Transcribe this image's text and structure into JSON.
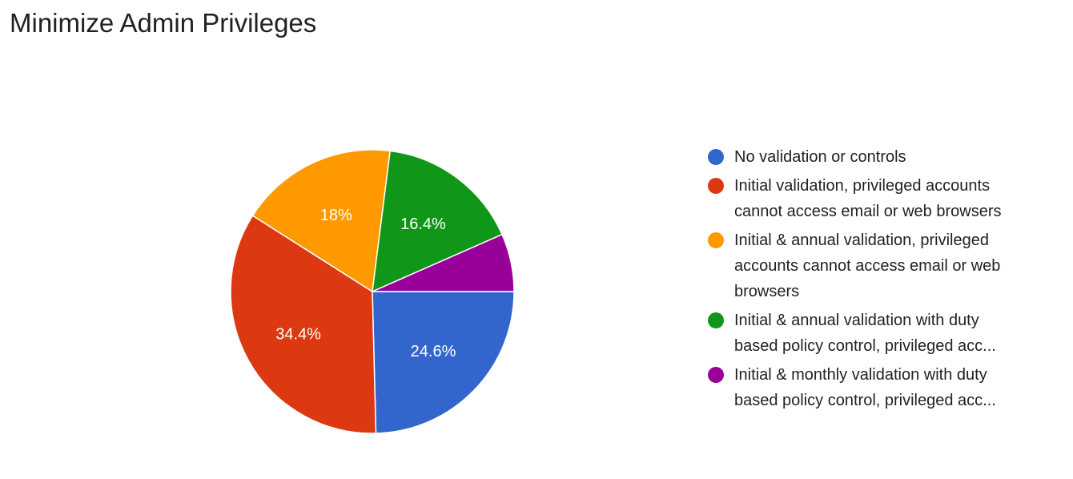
{
  "chart_data": {
    "type": "pie",
    "title": "Minimize Admin Privileges",
    "slices": [
      {
        "label_lines": [
          "No validation or controls"
        ],
        "value": 24.6,
        "value_label": "24.6%",
        "color": "#3366cc"
      },
      {
        "label_lines": [
          "Initial validation, privileged accounts",
          "cannot access email or web browsers"
        ],
        "value": 34.4,
        "value_label": "34.4%",
        "color": "#dc3912"
      },
      {
        "label_lines": [
          "Initial & annual validation, privileged",
          "accounts cannot access email or web",
          "browsers"
        ],
        "value": 18.0,
        "value_label": "18%",
        "color": "#ff9900"
      },
      {
        "label_lines": [
          "Initial & annual validation with duty",
          "based policy control, privileged acc..."
        ],
        "value": 16.4,
        "value_label": "16.4%",
        "color": "#109618"
      },
      {
        "label_lines": [
          "Initial & monthly validation with duty",
          "based policy control, privileged acc..."
        ],
        "value": 6.6,
        "value_label": "",
        "color": "#990099"
      }
    ],
    "legend_position": "right"
  }
}
